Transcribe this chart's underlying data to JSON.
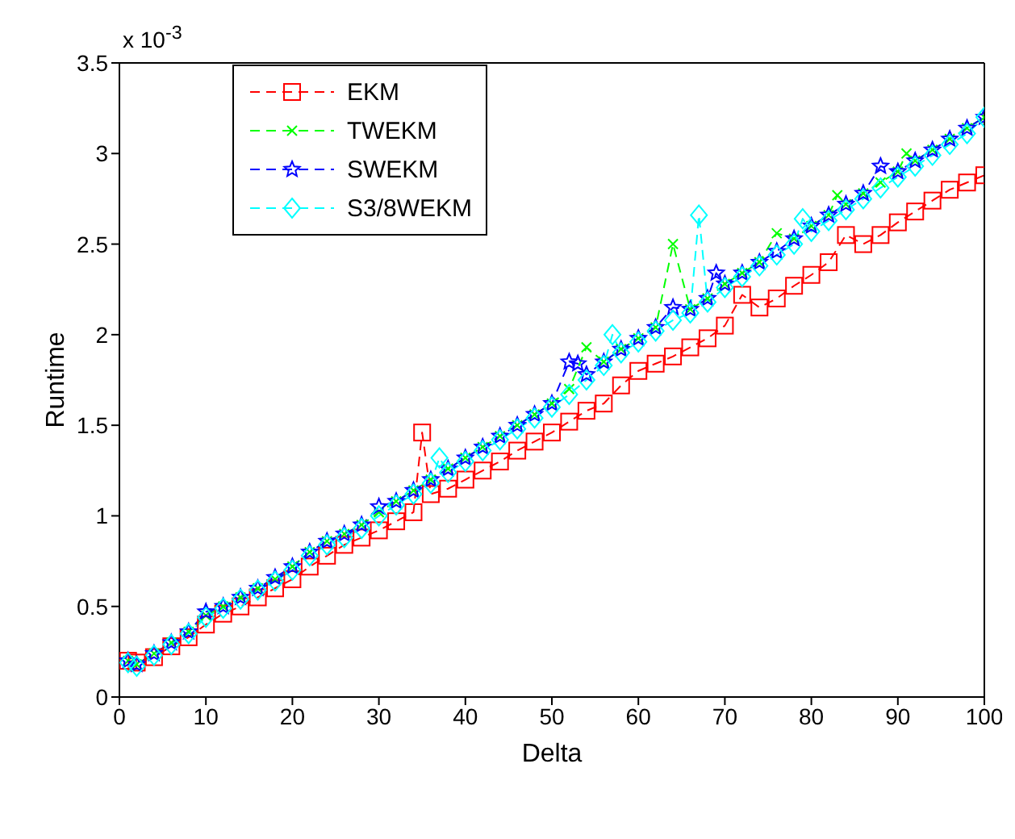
{
  "chart_data": {
    "type": "line",
    "xlabel": "Delta",
    "ylabel": "Runtime",
    "annotations": [
      "x 10$^{-3}$"
    ],
    "xlim": [
      0,
      100
    ],
    "xticks": [
      0,
      10,
      20,
      30,
      40,
      50,
      60,
      70,
      80,
      90,
      100
    ],
    "ylim": [
      0,
      3.5
    ],
    "yticks": [
      0,
      0.5,
      1,
      1.5,
      2,
      2.5,
      3,
      3.5
    ],
    "grid": false,
    "legend": "top left",
    "line_style": "dashed",
    "series": [
      {
        "name": "EKM",
        "color": "#ff0000",
        "marker": "square",
        "x": [
          1,
          2,
          4,
          6,
          8,
          10,
          12,
          14,
          16,
          18,
          20,
          22,
          24,
          26,
          28,
          30,
          32,
          34,
          35,
          36,
          38,
          40,
          42,
          44,
          46,
          48,
          50,
          52,
          54,
          56,
          58,
          60,
          62,
          64,
          66,
          68,
          70,
          72,
          74,
          76,
          78,
          80,
          82,
          84,
          86,
          88,
          90,
          92,
          94,
          96,
          98,
          100
        ],
        "values": [
          0.2,
          0.19,
          0.22,
          0.28,
          0.33,
          0.4,
          0.46,
          0.5,
          0.55,
          0.6,
          0.65,
          0.72,
          0.78,
          0.84,
          0.88,
          0.92,
          0.97,
          1.02,
          1.46,
          1.12,
          1.15,
          1.2,
          1.25,
          1.3,
          1.36,
          1.41,
          1.46,
          1.52,
          1.58,
          1.62,
          1.72,
          1.8,
          1.84,
          1.88,
          1.93,
          1.98,
          2.05,
          2.22,
          2.15,
          2.2,
          2.27,
          2.33,
          2.4,
          2.55,
          2.5,
          2.55,
          2.62,
          2.68,
          2.74,
          2.8,
          2.84,
          2.88
        ]
      },
      {
        "name": "TWEKM",
        "color": "#00ff00",
        "marker": "cross",
        "x": [
          1,
          2,
          4,
          6,
          8,
          10,
          12,
          14,
          16,
          18,
          20,
          22,
          24,
          26,
          28,
          30,
          32,
          34,
          36,
          38,
          40,
          42,
          44,
          46,
          48,
          50,
          52,
          54,
          56,
          58,
          60,
          62,
          64,
          66,
          68,
          70,
          72,
          74,
          76,
          78,
          80,
          82,
          83,
          84,
          86,
          88,
          90,
          91,
          92,
          94,
          96,
          98,
          100
        ],
        "values": [
          0.2,
          0.18,
          0.24,
          0.3,
          0.36,
          0.45,
          0.5,
          0.55,
          0.6,
          0.65,
          0.72,
          0.8,
          0.86,
          0.9,
          0.95,
          1.02,
          1.08,
          1.14,
          1.2,
          1.26,
          1.32,
          1.38,
          1.44,
          1.5,
          1.56,
          1.62,
          1.7,
          1.93,
          1.85,
          1.92,
          1.98,
          2.04,
          2.5,
          2.14,
          2.2,
          2.28,
          2.34,
          2.4,
          2.56,
          2.53,
          2.6,
          2.66,
          2.77,
          2.72,
          2.78,
          2.84,
          2.9,
          3.0,
          2.96,
          3.02,
          3.08,
          3.14,
          3.2
        ]
      },
      {
        "name": "SWEKM",
        "color": "#0000ff",
        "marker": "star",
        "x": [
          1,
          2,
          4,
          6,
          8,
          10,
          12,
          14,
          16,
          18,
          20,
          22,
          24,
          26,
          28,
          30,
          32,
          34,
          36,
          38,
          40,
          42,
          44,
          46,
          48,
          50,
          52,
          53,
          54,
          56,
          58,
          60,
          62,
          64,
          66,
          68,
          69,
          70,
          72,
          74,
          76,
          78,
          80,
          82,
          84,
          86,
          88,
          90,
          92,
          94,
          96,
          98,
          100
        ],
        "values": [
          0.2,
          0.18,
          0.24,
          0.3,
          0.36,
          0.47,
          0.5,
          0.55,
          0.6,
          0.66,
          0.72,
          0.8,
          0.86,
          0.9,
          0.95,
          1.05,
          1.08,
          1.14,
          1.2,
          1.26,
          1.32,
          1.38,
          1.44,
          1.5,
          1.56,
          1.62,
          1.85,
          1.84,
          1.78,
          1.85,
          1.92,
          1.98,
          2.04,
          2.15,
          2.14,
          2.2,
          2.34,
          2.28,
          2.34,
          2.4,
          2.46,
          2.53,
          2.6,
          2.66,
          2.72,
          2.78,
          2.93,
          2.9,
          2.96,
          3.02,
          3.08,
          3.14,
          3.2
        ]
      },
      {
        "name": "S3/8WEKM",
        "color": "#00ffff",
        "marker": "diamond",
        "x": [
          1,
          2,
          4,
          6,
          8,
          10,
          12,
          14,
          16,
          18,
          20,
          22,
          24,
          26,
          28,
          30,
          32,
          34,
          36,
          37,
          38,
          40,
          42,
          44,
          46,
          48,
          50,
          52,
          54,
          56,
          57,
          58,
          60,
          62,
          64,
          66,
          67,
          68,
          70,
          72,
          74,
          76,
          78,
          79,
          80,
          82,
          84,
          86,
          88,
          90,
          92,
          94,
          96,
          98,
          100
        ],
        "values": [
          0.19,
          0.17,
          0.23,
          0.29,
          0.35,
          0.44,
          0.49,
          0.54,
          0.59,
          0.64,
          0.7,
          0.78,
          0.84,
          0.88,
          0.93,
          1.0,
          1.06,
          1.12,
          1.18,
          1.32,
          1.24,
          1.3,
          1.36,
          1.42,
          1.48,
          1.54,
          1.6,
          1.67,
          1.75,
          1.83,
          2.0,
          1.9,
          1.96,
          2.02,
          2.08,
          2.12,
          2.66,
          2.18,
          2.26,
          2.32,
          2.38,
          2.44,
          2.5,
          2.64,
          2.57,
          2.63,
          2.69,
          2.75,
          2.81,
          2.87,
          2.93,
          2.99,
          3.05,
          3.11,
          3.2
        ]
      }
    ]
  }
}
